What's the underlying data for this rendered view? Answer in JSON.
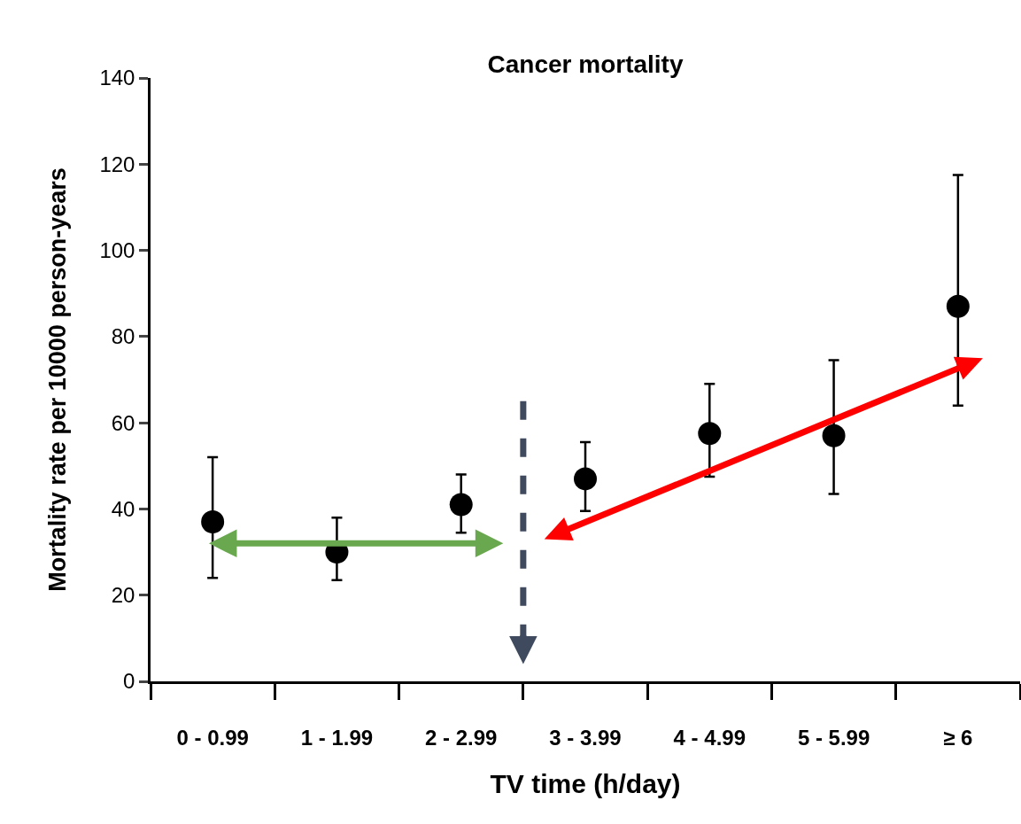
{
  "chart_data": {
    "type": "scatter",
    "title": "Cancer mortality",
    "xlabel": "TV time (h/day)",
    "ylabel": "Mortality rate per 10000 person-years",
    "categories": [
      "0 - 0.99",
      "1 - 1.99",
      "2 - 2.99",
      "3 - 3.99",
      "4 - 4.99",
      "5 - 5.99",
      "≥ 6"
    ],
    "series": [
      {
        "color": "#000000",
        "values": [
          37,
          30,
          41,
          47,
          57.5,
          57,
          87
        ],
        "errors": [
          [
            24,
            52
          ],
          [
            23.5,
            38
          ],
          [
            34.5,
            48
          ],
          [
            39.5,
            55.5
          ],
          [
            47.5,
            69
          ],
          [
            43.5,
            74.5
          ],
          [
            64,
            117.5
          ]
        ]
      }
    ],
    "ylim": [
      0,
      140
    ],
    "yticks": [
      0,
      20,
      40,
      60,
      80,
      100,
      120,
      140
    ],
    "marker": "circle"
  }
}
